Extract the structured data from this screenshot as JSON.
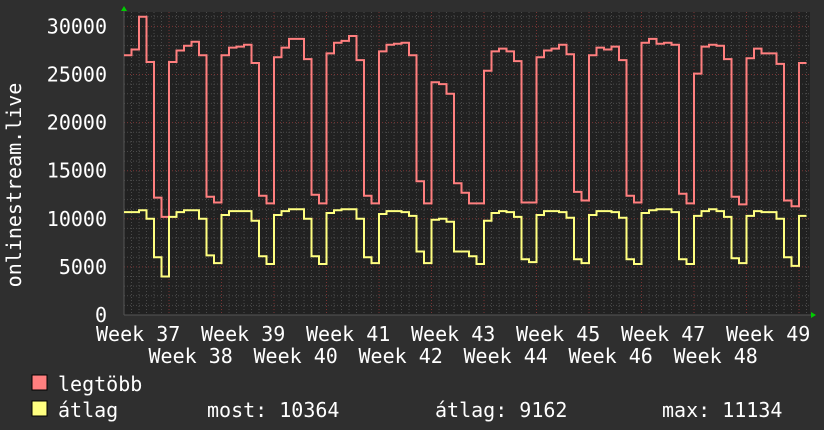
{
  "chart_data": {
    "type": "line",
    "ylabel": "onlinestream.live",
    "xlabel": "",
    "ylim": [
      0,
      31500
    ],
    "yticks": [
      0,
      5000,
      10000,
      15000,
      20000,
      25000,
      30000
    ],
    "ytick_labels": [
      "0",
      "5000",
      "10000",
      "15000",
      "20000",
      "25000",
      "30000"
    ],
    "x_tick_labels": [
      "Week 37",
      "Week 38",
      "Week 39",
      "Week 40",
      "Week 41",
      "Week 42",
      "Week 43",
      "Week 44",
      "Week 45",
      "Week 46",
      "Week 47",
      "Week 48",
      "Week 49"
    ],
    "x_unit": "day",
    "grid": true,
    "legend_placement": "bottom-left",
    "series": [
      {
        "name": "legtöbb",
        "color": "#ff7f7f",
        "values": [
          27000,
          27600,
          31000,
          26300,
          12200,
          10200,
          26300,
          27500,
          28000,
          28400,
          27000,
          12300,
          11700,
          27000,
          27800,
          27900,
          28100,
          26200,
          12400,
          11600,
          26800,
          27800,
          28700,
          28700,
          26600,
          12500,
          11600,
          27200,
          28300,
          28500,
          29000,
          26500,
          12400,
          11600,
          27400,
          28100,
          28200,
          28300,
          27000,
          13900,
          11600,
          24200,
          24000,
          23000,
          13700,
          12700,
          11600,
          11600,
          25400,
          27400,
          27700,
          27400,
          26400,
          11700,
          11700,
          26800,
          27500,
          27700,
          28100,
          27100,
          12800,
          11900,
          27000,
          27800,
          27600,
          27900,
          26500,
          12400,
          11700,
          28300,
          28700,
          28200,
          28300,
          28100,
          12600,
          11600,
          25100,
          27900,
          28100,
          28000,
          26600,
          12300,
          11500,
          26700,
          27700,
          27200,
          27200,
          26100,
          11900,
          11300,
          26200
        ]
      },
      {
        "name": "átlag",
        "color": "#ffff80",
        "values": [
          10700,
          10700,
          10900,
          10000,
          6000,
          4000,
          10200,
          10700,
          10900,
          10900,
          10000,
          6200,
          5400,
          10400,
          10800,
          10800,
          10800,
          9800,
          6100,
          5300,
          10400,
          10800,
          11000,
          11000,
          10000,
          6100,
          5300,
          10600,
          10900,
          11000,
          11000,
          10000,
          6000,
          5400,
          10500,
          10800,
          10800,
          10700,
          10300,
          6600,
          5400,
          9900,
          10000,
          9700,
          6600,
          6600,
          6100,
          5300,
          9800,
          10600,
          10800,
          10700,
          10200,
          5800,
          5500,
          10400,
          10800,
          10800,
          10700,
          10100,
          5800,
          5400,
          10400,
          10800,
          10800,
          10700,
          10100,
          5800,
          5300,
          10600,
          10900,
          11000,
          11000,
          10700,
          5800,
          5300,
          10300,
          10800,
          11000,
          10800,
          10200,
          5900,
          5400,
          10300,
          10800,
          10700,
          10700,
          10000,
          6000,
          5100,
          10300
        ]
      }
    ],
    "first_week_days": 6
  },
  "legend": {
    "max_label": "legtöbb",
    "avg_label": "átlag",
    "stats": {
      "current": "most: 10364",
      "average": "átlag: 9162",
      "maximum": "max: 11134"
    }
  },
  "colors": {
    "background": "#2f2f2f",
    "plot_background": "#212121",
    "minor_grid": "#4a4a4a",
    "major_grid": "#7a3535",
    "axis_arrow": "#00cc00"
  }
}
